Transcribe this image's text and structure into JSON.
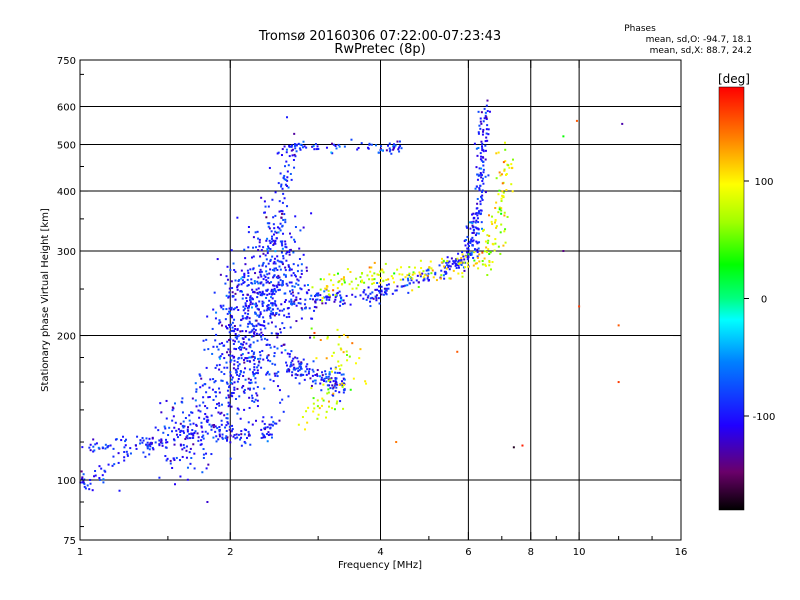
{
  "header": {
    "title_line1": "Tromsø 20160306 07:22:00-07:23:43",
    "title_line2": "RwPretec (8p)"
  },
  "stats": {
    "heading": "Phases",
    "line_o": "mean, sd,O: -94.7, 18.1",
    "line_x": "mean, sd,X: 88.7, 24.2"
  },
  "colorbar": {
    "unit": "[deg]",
    "range": [
      -180,
      180
    ],
    "ticks": [
      {
        "value": 100,
        "label": "100"
      },
      {
        "value": 0,
        "label": "0"
      },
      {
        "value": -100,
        "label": "-100"
      }
    ],
    "colormap": "rainbow"
  },
  "chart_data": {
    "type": "scatter",
    "title": "Tromsø 20160306 07:22:00-07:23:43",
    "subtitle": "RwPretec (8p)",
    "xlabel": "Frequency [MHz]",
    "ylabel": "Stationary phase Virtual Height [km]",
    "xscale": "log",
    "yscale": "log",
    "xlim": [
      1,
      16
    ],
    "ylim": [
      75,
      750
    ],
    "grid": true,
    "xticks": [
      {
        "value": 1,
        "label": "1"
      },
      {
        "value": 2,
        "label": "2"
      },
      {
        "value": 4,
        "label": "4"
      },
      {
        "value": 6,
        "label": "6"
      },
      {
        "value": 8,
        "label": "8"
      },
      {
        "value": 10,
        "label": "10"
      },
      {
        "value": 16,
        "label": "16"
      }
    ],
    "xgrid": [
      2,
      4,
      6,
      8,
      10
    ],
    "yticks": [
      {
        "value": 75,
        "label": "75"
      },
      {
        "value": 100,
        "label": "100"
      },
      {
        "value": 200,
        "label": "200"
      },
      {
        "value": 300,
        "label": "300"
      },
      {
        "value": 400,
        "label": "400"
      },
      {
        "value": 500,
        "label": "500"
      },
      {
        "value": 600,
        "label": "600"
      },
      {
        "value": 750,
        "label": "750"
      }
    ],
    "ygrid": [
      100,
      200,
      300,
      400,
      500,
      600
    ],
    "color_variable": "phase",
    "color_units": "deg",
    "color_range": [
      -180,
      180
    ],
    "series": [
      {
        "name": "O",
        "mean_phase": -94.7,
        "sd_phase": 18.1,
        "traces": [
          {
            "x": [
              1.0,
              1.05,
              1.1,
              1.2,
              1.3,
              1.4,
              1.5,
              1.6,
              1.7,
              1.8,
              1.9,
              2.0,
              2.1,
              2.2,
              2.3,
              2.4,
              2.5
            ],
            "y": [
              98,
              100,
              104,
              110,
              116,
              120,
              123,
              125,
              126,
              126,
              125,
              124,
              124,
              125,
              126,
              127,
              128
            ],
            "spread": 0.025,
            "n": 180
          },
          {
            "x": [
              1.0,
              1.1,
              1.2,
              1.3,
              1.4,
              1.5
            ],
            "y": [
              118,
              117,
              118,
              118,
              118,
              119
            ],
            "spread": 0.02,
            "n": 60
          },
          {
            "x": [
              1.5,
              1.6,
              1.7,
              1.8,
              1.9,
              2.0,
              2.1,
              2.2,
              2.3,
              2.5
            ],
            "y": [
              118,
              120,
              125,
              135,
              148,
              160,
              170,
              175,
              180,
              180
            ],
            "spread": 0.12,
            "n": 350
          },
          {
            "x": [
              1.9,
              2.0,
              2.1,
              2.2,
              2.3,
              2.4,
              2.5
            ],
            "y": [
              190,
              210,
              230,
              250,
              270,
              290,
              300
            ],
            "spread": 0.14,
            "n": 320
          },
          {
            "x": [
              2.0,
              2.2,
              2.4,
              2.6,
              2.8
            ],
            "y": [
              200,
              220,
              250,
              270,
              250
            ],
            "spread": 0.12,
            "n": 260
          },
          {
            "x": [
              2.6,
              2.8,
              3.0,
              3.2,
              3.4
            ],
            "y": [
              175,
              168,
              163,
              160,
              158
            ],
            "spread": 0.03,
            "n": 140
          },
          {
            "x": [
              2.4,
              2.6,
              2.8,
              3.0,
              3.2,
              3.5,
              3.8,
              4.0,
              4.3,
              4.6,
              5.0,
              5.3,
              5.6,
              5.9,
              6.1,
              6.3
            ],
            "y": [
              225,
              232,
              237,
              239,
              240,
              240,
              242,
              246,
              252,
              258,
              265,
              272,
              280,
              290,
              300,
              310
            ],
            "spread": 0.02,
            "n": 260
          },
          {
            "x": [
              6.0,
              6.1,
              6.2,
              6.3,
              6.35,
              6.4,
              6.45,
              6.5
            ],
            "y": [
              300,
              320,
              345,
              380,
              420,
              470,
              520,
              580
            ],
            "spread": 0.04,
            "n": 160
          },
          {
            "x": [
              2.5,
              2.6,
              2.7,
              2.8,
              3.0,
              3.2,
              3.5,
              3.8,
              4.0,
              4.2,
              4.4
            ],
            "y": [
              480,
              490,
              495,
              495,
              495,
              495,
              495,
              495,
              490,
              492,
              498
            ],
            "spread": 0.012,
            "n": 80
          },
          {
            "x": [
              2.45,
              2.5,
              2.55,
              2.6,
              2.7
            ],
            "y": [
              300,
              350,
              400,
              450,
              530
            ],
            "spread": 0.04,
            "n": 60
          }
        ]
      },
      {
        "name": "X",
        "mean_phase": 88.7,
        "sd_phase": 24.2,
        "traces": [
          {
            "x": [
              3.0,
              3.2,
              3.4,
              3.6,
              3.8,
              4.0,
              4.3,
              4.6,
              5.0,
              5.4,
              5.8,
              6.2,
              6.6,
              7.0
            ],
            "y": [
              250,
              255,
              258,
              260,
              262,
              262,
              265,
              268,
              270,
              275,
              280,
              285,
              290,
              300
            ],
            "spread": 0.03,
            "n": 160
          },
          {
            "x": [
              6.6,
              6.8,
              7.0,
              7.1,
              7.2
            ],
            "y": [
              300,
              330,
              370,
              420,
              480
            ],
            "spread": 0.06,
            "n": 80
          },
          {
            "x": [
              2.8,
              3.0,
              3.2,
              3.4
            ],
            "y": [
              140,
              145,
              150,
              155
            ],
            "spread": 0.06,
            "n": 40
          },
          {
            "x": [
              2.9,
              3.1,
              3.3,
              3.5,
              3.7
            ],
            "y": [
              200,
              195,
              185,
              178,
              170
            ],
            "spread": 0.06,
            "n": 35
          }
        ]
      }
    ],
    "outliers": [
      {
        "x": 12.2,
        "y": 552,
        "phase": -130
      },
      {
        "x": 12.0,
        "y": 160,
        "phase": 160
      },
      {
        "x": 12.0,
        "y": 210,
        "phase": 150
      },
      {
        "x": 9.3,
        "y": 520,
        "phase": 30
      },
      {
        "x": 9.3,
        "y": 300,
        "phase": -140
      },
      {
        "x": 9.9,
        "y": 560,
        "phase": 150
      },
      {
        "x": 10.0,
        "y": 230,
        "phase": 160
      },
      {
        "x": 7.7,
        "y": 118,
        "phase": 170
      },
      {
        "x": 7.4,
        "y": 117,
        "phase": -170
      },
      {
        "x": 4.3,
        "y": 120,
        "phase": 140
      },
      {
        "x": 5.7,
        "y": 185,
        "phase": 150
      },
      {
        "x": 1.8,
        "y": 90,
        "phase": -120
      },
      {
        "x": 1.2,
        "y": 95,
        "phase": -100
      },
      {
        "x": 1.55,
        "y": 98,
        "phase": -110
      }
    ]
  }
}
